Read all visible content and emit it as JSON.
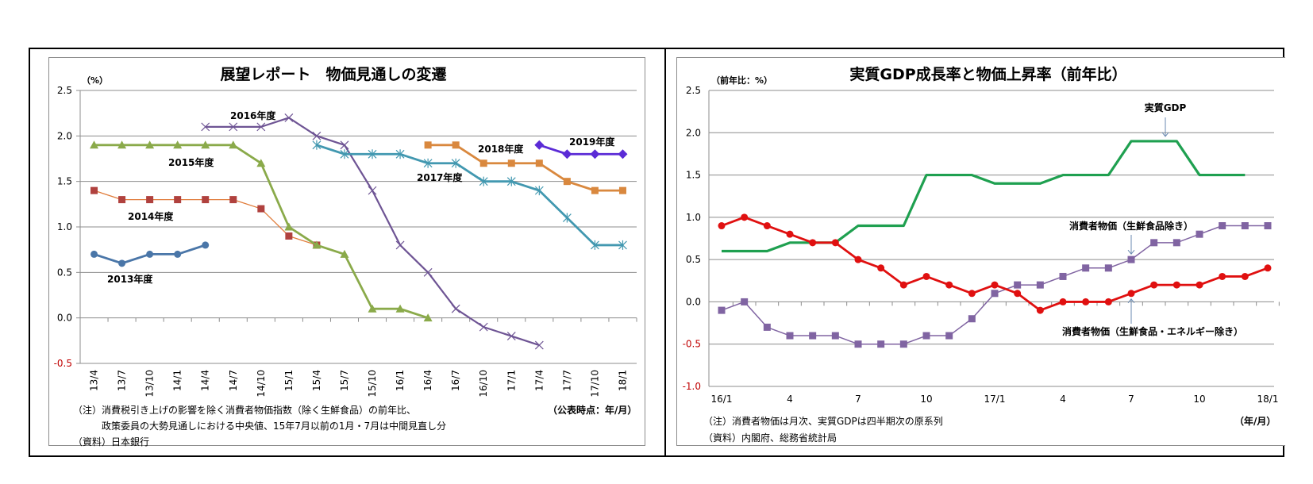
{
  "left": {
    "title": "展望レポート　物価見通しの変遷",
    "unit_label": "（%）",
    "xlabel": "（公表時点：年/月）",
    "notes": [
      "（注）消費税引き上げの影響を除く消費者物価指数（除く生鮮食品）の前年比、",
      "　　　政策委員の大勢見通しにおける中央値、15年7月以前の1月・7月は中間見直し分",
      "（資料）日本銀行"
    ]
  },
  "right": {
    "title": "実質GDP成長率と物価上昇率（前年比）",
    "unit_label": "（前年比：%）",
    "xlabel": "（年/月）",
    "notes": [
      "（注）消費者物価は月次、実質GDPは四半期次の原系列",
      "（資料）内閣府、総務省統計局"
    ],
    "annotations": {
      "gdp": "実質GDP",
      "cpi_core": "消費者物価（生鮮食品除き）",
      "cpi_corecore": "消費者物価（生鮮食品・エネルギー除き）"
    }
  },
  "chart_data": [
    {
      "type": "line",
      "title": "展望レポート　物価見通しの変遷",
      "ylabel": "（%）",
      "xlabel": "（公表時点：年/月）",
      "ylim": [
        -0.5,
        2.5
      ],
      "yticks": [
        "2.5",
        "2.0",
        "1.5",
        "1.0",
        "0.5",
        "0.0",
        "-0.5"
      ],
      "grid": true,
      "categories": [
        "13/4",
        "13/7",
        "13/10",
        "14/1",
        "14/4",
        "14/7",
        "14/10",
        "15/1",
        "15/4",
        "15/7",
        "15/10",
        "16/1",
        "16/4",
        "16/7",
        "16/10",
        "17/1",
        "17/4",
        "17/7",
        "17/10",
        "18/1"
      ],
      "series": [
        {
          "name": "2013年度",
          "color": "#4a76a8",
          "marker": "circle",
          "start": 0,
          "values": [
            0.7,
            0.6,
            0.7,
            0.7,
            0.8
          ]
        },
        {
          "name": "2014年度",
          "color": "#e07b39",
          "marker_color": "#b0413e",
          "marker": "square",
          "start": 0,
          "values": [
            1.4,
            1.3,
            1.3,
            1.3,
            1.3,
            1.3,
            1.2,
            0.9,
            0.8
          ]
        },
        {
          "name": "2015年度",
          "color": "#8aaa4a",
          "marker": "triangle",
          "start": 0,
          "values": [
            1.9,
            1.9,
            1.9,
            1.9,
            1.9,
            1.9,
            1.7,
            1.0,
            0.8,
            0.7,
            0.1,
            0.1,
            0.0
          ]
        },
        {
          "name": "2016年度",
          "color": "#6e5494",
          "marker": "x",
          "start": 4,
          "values": [
            2.1,
            2.1,
            2.1,
            2.2,
            2.0,
            1.9,
            1.4,
            0.8,
            0.5,
            0.1,
            -0.1,
            -0.2,
            -0.3
          ]
        },
        {
          "name": "2017年度",
          "color": "#4298b0",
          "marker": "star",
          "start": 8,
          "values": [
            1.9,
            1.8,
            1.8,
            1.8,
            1.7,
            1.7,
            1.5,
            1.5,
            1.4,
            1.1,
            0.8,
            0.8
          ]
        },
        {
          "name": "2018年度",
          "color": "#d9883e",
          "marker": "square",
          "start": 12,
          "values": [
            1.9,
            1.9,
            1.7,
            1.7,
            1.7,
            1.5,
            1.4,
            1.4
          ]
        },
        {
          "name": "2019年度",
          "color": "#5b2bd6",
          "marker": "diamond",
          "start": 16,
          "values": [
            1.9,
            1.8,
            1.8,
            1.8
          ]
        }
      ],
      "labels": [
        {
          "text": "2013年度",
          "series": 0
        },
        {
          "text": "2014年度",
          "series": 1
        },
        {
          "text": "2015年度",
          "series": 2
        },
        {
          "text": "2016年度",
          "series": 3
        },
        {
          "text": "2017年度",
          "series": 4
        },
        {
          "text": "2018年度",
          "series": 5
        },
        {
          "text": "2019年度",
          "series": 6
        }
      ]
    },
    {
      "type": "line",
      "title": "実質GDP成長率と物価上昇率（前年比）",
      "ylabel": "（前年比：%）",
      "xlabel": "（年/月）",
      "ylim": [
        -1.0,
        2.5
      ],
      "yticks": [
        "2.5",
        "2.0",
        "1.5",
        "1.0",
        "0.5",
        "0.0",
        "-0.5",
        "-1.0"
      ],
      "grid": true,
      "x_tick_labels": [
        "16/1",
        "4",
        "7",
        "10",
        "17/1",
        "4",
        "7",
        "10",
        "18/1"
      ],
      "months": [
        "16/1",
        "16/2",
        "16/3",
        "16/4",
        "16/5",
        "16/6",
        "16/7",
        "16/8",
        "16/9",
        "16/10",
        "16/11",
        "16/12",
        "17/1",
        "17/2",
        "17/3",
        "17/4",
        "17/5",
        "17/6",
        "17/7",
        "17/8",
        "17/9",
        "17/10",
        "17/11",
        "17/12",
        "18/1"
      ],
      "series": [
        {
          "name": "実質GDP",
          "color": "#1fa050",
          "marker": "none",
          "values": [
            0.6,
            0.6,
            0.6,
            0.7,
            0.7,
            0.7,
            0.9,
            0.9,
            0.9,
            1.5,
            1.5,
            1.5,
            1.4,
            1.4,
            1.4,
            1.5,
            1.5,
            1.5,
            1.9,
            1.9,
            1.9,
            1.5,
            1.5,
            1.5
          ]
        },
        {
          "name": "消費者物価（生鮮食品除き）",
          "color": "#8064a2",
          "marker": "square",
          "values": [
            -0.1,
            0.0,
            -0.3,
            -0.4,
            -0.4,
            -0.4,
            -0.5,
            -0.5,
            -0.5,
            -0.4,
            -0.4,
            -0.2,
            0.1,
            0.2,
            0.2,
            0.3,
            0.4,
            0.4,
            0.5,
            0.7,
            0.7,
            0.8,
            0.9,
            0.9,
            0.9
          ]
        },
        {
          "name": "消費者物価（生鮮食品・エネルギー除き）",
          "color": "#e01010",
          "marker": "circle",
          "values": [
            0.9,
            1.0,
            0.9,
            0.8,
            0.7,
            0.7,
            0.5,
            0.4,
            0.2,
            0.3,
            0.2,
            0.1,
            0.2,
            0.1,
            -0.1,
            0.0,
            0.0,
            0.0,
            0.1,
            0.2,
            0.2,
            0.2,
            0.3,
            0.3,
            0.4
          ]
        }
      ]
    }
  ]
}
